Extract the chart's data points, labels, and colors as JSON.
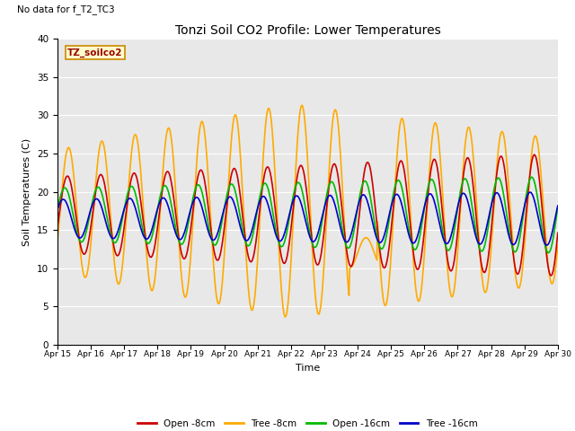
{
  "title": "Tonzi Soil CO2 Profile: Lower Temperatures",
  "no_data_label": "No data for f_T2_TC3",
  "legend_box_label": "TZ_soilco2",
  "xlabel": "Time",
  "ylabel": "Soil Temperatures (C)",
  "ylim": [
    0,
    40
  ],
  "xlim_hours": 360,
  "background_color": "#e8e8e8",
  "fig_background": "#ffffff",
  "series": {
    "open_8cm": {
      "label": "Open -8cm",
      "color": "#cc0000",
      "linewidth": 1.2
    },
    "tree_8cm": {
      "label": "Tree -8cm",
      "color": "#ffaa00",
      "linewidth": 1.2
    },
    "open_16cm": {
      "label": "Open -16cm",
      "color": "#00bb00",
      "linewidth": 1.2
    },
    "tree_16cm": {
      "label": "Tree -16cm",
      "color": "#0000cc",
      "linewidth": 1.2
    }
  },
  "xtick_labels": [
    "Apr 15",
    "Apr 16",
    "Apr 17",
    "Apr 18",
    "Apr 19",
    "Apr 20",
    "Apr 21",
    "Apr 22",
    "Apr 23",
    "Apr 24",
    "Apr 25",
    "Apr 26",
    "Apr 27",
    "Apr 28",
    "Apr 29",
    "Apr 30"
  ],
  "xtick_positions": [
    0,
    24,
    48,
    72,
    96,
    120,
    144,
    168,
    192,
    216,
    240,
    264,
    288,
    312,
    336,
    360
  ],
  "ytick_positions": [
    0,
    5,
    10,
    15,
    20,
    25,
    30,
    35,
    40
  ]
}
